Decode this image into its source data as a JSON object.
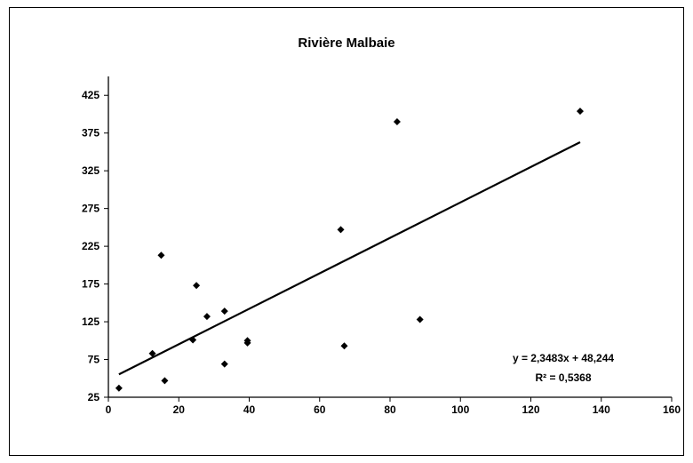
{
  "chart_data": {
    "type": "scatter",
    "title": "Rivière Malbaie",
    "xlabel": "",
    "ylabel": "",
    "xlim": [
      0,
      160
    ],
    "ylim": [
      25,
      450
    ],
    "x_ticks": [
      "0",
      "20",
      "40",
      "60",
      "80",
      "100",
      "120",
      "140",
      "160"
    ],
    "y_ticks": [
      "25",
      "75",
      "125",
      "175",
      "225",
      "275",
      "325",
      "375",
      "425"
    ],
    "grid": false,
    "legend": "none",
    "points": [
      {
        "x": 3,
        "y": 37
      },
      {
        "x": 12.5,
        "y": 83
      },
      {
        "x": 15,
        "y": 213
      },
      {
        "x": 16,
        "y": 47
      },
      {
        "x": 24,
        "y": 101
      },
      {
        "x": 25,
        "y": 173
      },
      {
        "x": 28,
        "y": 132
      },
      {
        "x": 33,
        "y": 139
      },
      {
        "x": 33,
        "y": 69
      },
      {
        "x": 39.5,
        "y": 97
      },
      {
        "x": 39.5,
        "y": 100
      },
      {
        "x": 66,
        "y": 247
      },
      {
        "x": 67,
        "y": 93
      },
      {
        "x": 82,
        "y": 390
      },
      {
        "x": 88.5,
        "y": 128
      },
      {
        "x": 134,
        "y": 404
      }
    ],
    "trendline": {
      "type": "linear",
      "slope": 2.3483,
      "intercept": 48.244,
      "x_range": [
        3,
        134
      ],
      "equation_label": "y = 2,3483x + 48,244",
      "r2_label": "R² = 0,5368"
    },
    "colors": {
      "marker": "#000000",
      "line": "#000000",
      "frame": "#000000"
    }
  }
}
